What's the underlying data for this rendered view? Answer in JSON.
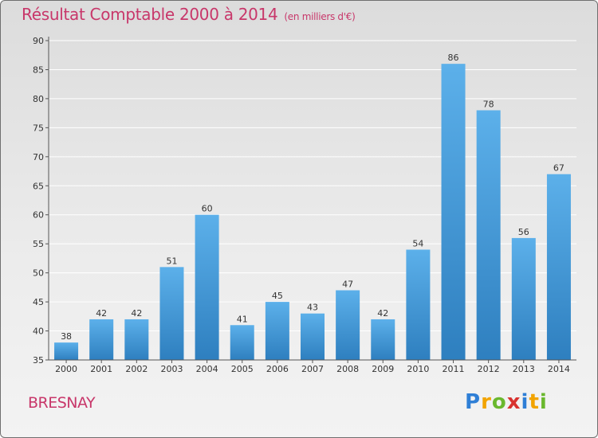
{
  "page": {
    "title": "Résultat Comptable 2000 à 2014",
    "subtitle": "(en milliers d'€)",
    "commune": "BRESNAY",
    "logo": {
      "letters": [
        "P",
        "r",
        "o",
        "x",
        "i",
        "t",
        "i"
      ],
      "colors": [
        "#2f7fd6",
        "#f2a400",
        "#6ab82e",
        "#d8322f",
        "#2f7fd6",
        "#f2a400",
        "#6ab82e"
      ]
    }
  },
  "chart_data": {
    "type": "bar",
    "title": "Résultat Comptable 2000 à 2014",
    "subtitle": "(en milliers d'€)",
    "xlabel": "",
    "ylabel": "",
    "categories": [
      "2000",
      "2001",
      "2002",
      "2003",
      "2004",
      "2005",
      "2006",
      "2007",
      "2008",
      "2009",
      "2010",
      "2011",
      "2012",
      "2013",
      "2014"
    ],
    "values": [
      38,
      42,
      42,
      51,
      60,
      41,
      45,
      43,
      47,
      42,
      54,
      86,
      78,
      56,
      67
    ],
    "ylim": [
      35,
      90
    ],
    "yticks": [
      35,
      40,
      45,
      50,
      55,
      60,
      65,
      70,
      75,
      80,
      85,
      90
    ],
    "grid": true,
    "colors": {
      "bar_light": "#5cb0ea",
      "bar_dark": "#2e7fbf",
      "grid": "#ffffff",
      "axis": "#555555",
      "title": "#c8376a"
    }
  }
}
